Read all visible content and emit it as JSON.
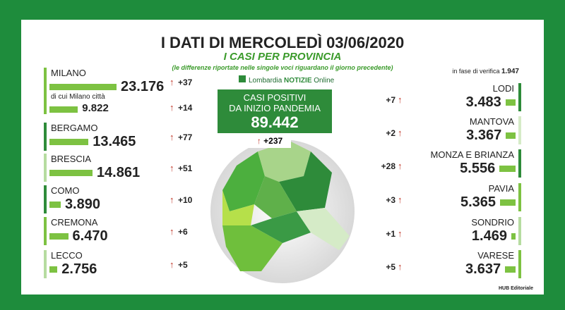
{
  "header": {
    "title": "I DATI DI MERCOLEDÌ 03/06/2020",
    "subtitle": "I CASI PER PROVINCIA",
    "note": "(le differenze riportate nelle singole voci riguardano il giorno precedente)"
  },
  "brand": {
    "name": "Lombardia",
    "highlight": "NOTIZIE",
    "suffix": "Online"
  },
  "total": {
    "line1": "CASI POSITIVI",
    "line2": "DA INIZIO PANDEMIA",
    "value": "89.442",
    "change": "+237"
  },
  "pending": {
    "label": "in fase di verifica",
    "value": "1.947"
  },
  "left": [
    {
      "name": "MILANO",
      "value": "23.176",
      "change": "+37"
    },
    {
      "name": "di cui Milano città",
      "value": "9.822",
      "change": "+14"
    },
    {
      "name": "BERGAMO",
      "value": "13.465",
      "change": "+77"
    },
    {
      "name": "BRESCIA",
      "value": "14.861",
      "change": "+51"
    },
    {
      "name": "COMO",
      "value": "3.890",
      "change": "+10"
    },
    {
      "name": "CREMONA",
      "value": "6.470",
      "change": "+6"
    },
    {
      "name": "LECCO",
      "value": "2.756",
      "change": "+5"
    }
  ],
  "right": [
    {
      "name": "LODI",
      "value": "3.483",
      "change": "+7"
    },
    {
      "name": "MANTOVA",
      "value": "3.367",
      "change": "+2"
    },
    {
      "name": "MONZA E BRIANZA",
      "value": "5.556",
      "change": "+28"
    },
    {
      "name": "PAVIA",
      "value": "5.365",
      "change": "+3"
    },
    {
      "name": "SONDRIO",
      "value": "1.469",
      "change": "+1"
    },
    {
      "name": "VARESE",
      "value": "3.637",
      "change": "+5"
    }
  ],
  "footer": "HUB Editoriale"
}
